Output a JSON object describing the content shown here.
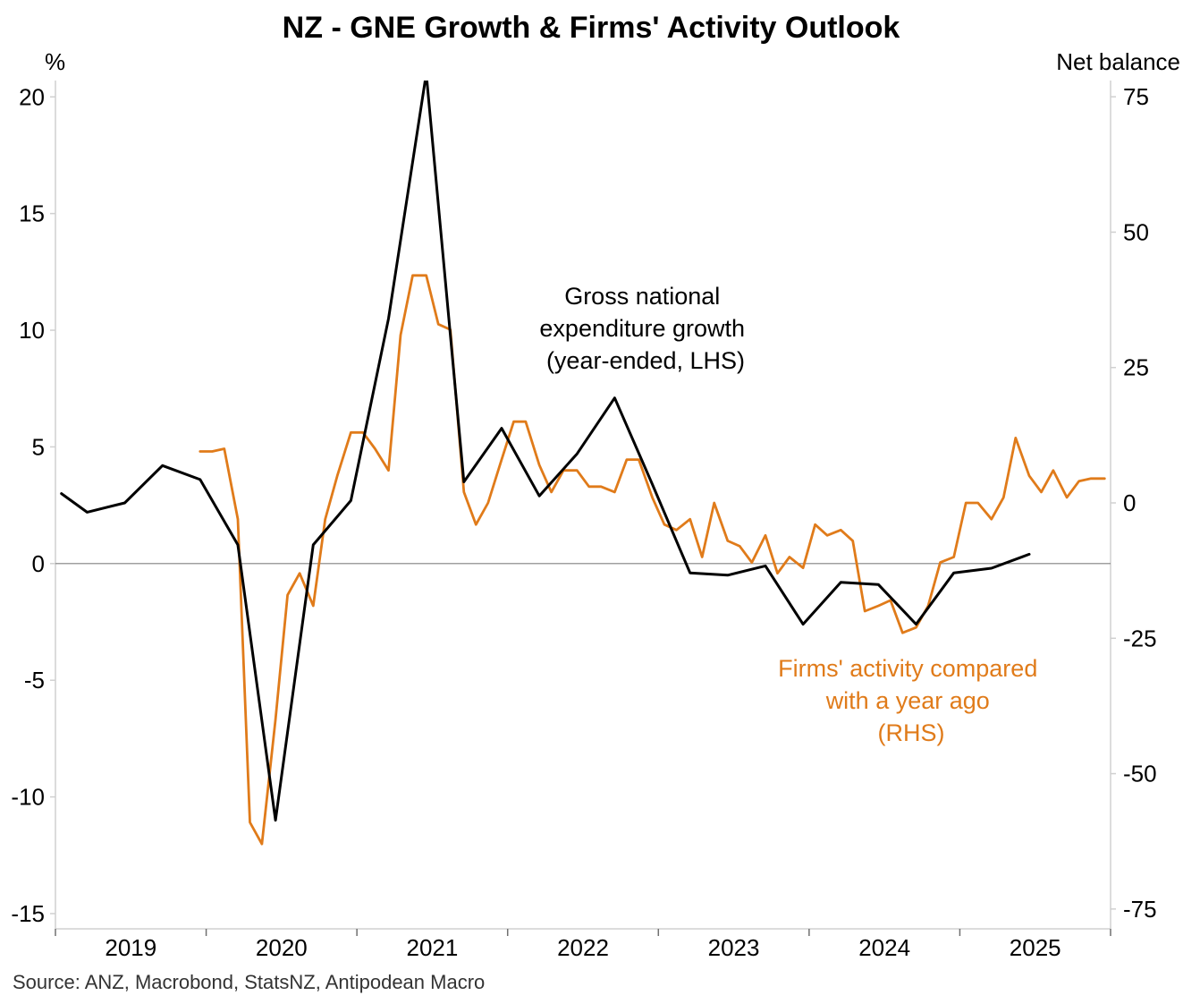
{
  "chart_data": {
    "type": "line",
    "title": "NZ - GNE Growth & Firms' Activity Outlook",
    "left_axis_unit": "%",
    "right_axis_unit": "Net balance",
    "left_ylim": [
      -15.5,
      20.7
    ],
    "right_ylim": [
      -78,
      78
    ],
    "left_ticks": [
      {
        "v": 20,
        "label": "20"
      },
      {
        "v": 15,
        "label": "15"
      },
      {
        "v": 10,
        "label": "10"
      },
      {
        "v": 5,
        "label": "5"
      },
      {
        "v": 0,
        "label": "0"
      },
      {
        "v": -5,
        "label": "-5"
      },
      {
        "v": -10,
        "label": "-10"
      },
      {
        "v": -15,
        "label": "-15"
      }
    ],
    "right_ticks": [
      {
        "v": 75,
        "label": "75"
      },
      {
        "v": 50,
        "label": "50"
      },
      {
        "v": 25,
        "label": "25"
      },
      {
        "v": 0,
        "label": "0"
      },
      {
        "v": -25,
        "label": "-25"
      },
      {
        "v": -50,
        "label": "-50"
      },
      {
        "v": -75,
        "label": "-75"
      }
    ],
    "xlim": [
      2019.0,
      2026.0
    ],
    "x_labels": [
      "2019",
      "2020",
      "2021",
      "2022",
      "2023",
      "2024",
      "2025"
    ],
    "zero_line_color": "#808080",
    "series": [
      {
        "name": "Gross national expenditure growth (year-ended, LHS)",
        "axis": "left",
        "color": "#000000",
        "x": [
          2019.04,
          2019.21,
          2019.46,
          2019.71,
          2019.96,
          2020.21,
          2020.46,
          2020.71,
          2020.96,
          2021.21,
          2021.46,
          2021.71,
          2021.96,
          2022.21,
          2022.46,
          2022.71,
          2022.96,
          2023.21,
          2023.46,
          2023.71,
          2023.96,
          2024.21,
          2024.46,
          2024.71,
          2024.96,
          2025.21,
          2025.46
        ],
        "values": [
          3.0,
          2.2,
          2.6,
          4.2,
          3.6,
          0.8,
          -11.0,
          0.8,
          2.7,
          10.5,
          21.0,
          3.5,
          5.8,
          2.9,
          4.7,
          7.1,
          3.4,
          -0.4,
          -0.5,
          -0.1,
          -2.6,
          -0.8,
          -0.9,
          -2.6,
          -0.4,
          -0.2,
          0.4
        ]
      },
      {
        "name": "Firms' activity compared with a year ago (RHS)",
        "axis": "right",
        "color": "#e07b1a",
        "x": [
          2019.96,
          2020.04,
          2020.12,
          2020.21,
          2020.29,
          2020.37,
          2020.46,
          2020.54,
          2020.62,
          2020.71,
          2020.79,
          2020.87,
          2020.96,
          2021.04,
          2021.12,
          2021.21,
          2021.29,
          2021.37,
          2021.46,
          2021.54,
          2021.62,
          2021.71,
          2021.79,
          2021.87,
          2021.96,
          2022.04,
          2022.12,
          2022.21,
          2022.29,
          2022.37,
          2022.46,
          2022.54,
          2022.62,
          2022.71,
          2022.79,
          2022.87,
          2022.96,
          2023.04,
          2023.12,
          2023.21,
          2023.29,
          2023.37,
          2023.46,
          2023.54,
          2023.62,
          2023.71,
          2023.79,
          2023.87,
          2023.96,
          2024.04,
          2024.12,
          2024.21,
          2024.29,
          2024.37,
          2024.46,
          2024.54,
          2024.62,
          2024.71,
          2024.79,
          2024.87,
          2024.96,
          2025.04,
          2025.12,
          2025.21,
          2025.29,
          2025.37,
          2025.46,
          2025.54,
          2025.62,
          2025.71,
          2025.79,
          2025.87,
          2025.96
        ],
        "values": [
          9.5,
          9.5,
          10,
          -3,
          -59,
          -63,
          -40,
          -17,
          -13,
          -19,
          -3,
          5,
          13,
          13,
          10,
          6,
          31,
          42,
          42,
          33,
          32,
          2,
          -4,
          0,
          8,
          15,
          15,
          7,
          2,
          6,
          6,
          3,
          3,
          2,
          8,
          8,
          1,
          -4,
          -5,
          -3,
          -10,
          0,
          -7,
          -8,
          -11,
          -6,
          -13,
          -10,
          -12,
          -4,
          -6,
          -5,
          -7,
          -20,
          -19,
          -18,
          -24,
          -23,
          -19,
          -11,
          -10,
          0,
          0,
          -3,
          1,
          12,
          5,
          2,
          6,
          1,
          4,
          4.5,
          4.5
        ]
      }
    ],
    "annotations": [
      {
        "lines": [
          "Gross national",
          "expenditure growth",
          "(year-ended, LHS)"
        ],
        "color": "#000000"
      },
      {
        "lines": [
          "Firms' activity compared",
          "with a year ago",
          "(RHS)"
        ],
        "color": "#e07b1a"
      }
    ],
    "source": "Source: ANZ, Macrobond, StatsNZ, Antipodean Macro"
  }
}
